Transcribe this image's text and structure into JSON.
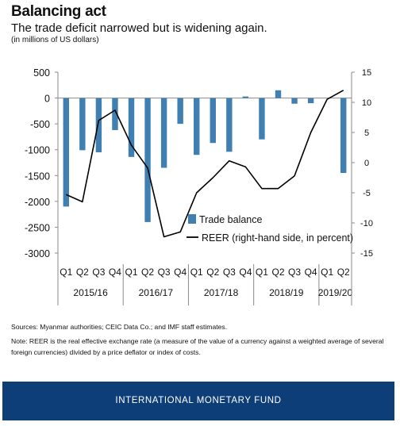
{
  "header": {
    "title": "Balancing act",
    "subtitle": "The trade deficit narrowed but is widening again.",
    "units": "(in millions of US dollars)"
  },
  "chart_data": {
    "type": "bar+line",
    "categories": [
      "Q1",
      "Q2",
      "Q3",
      "Q4",
      "Q1",
      "Q2",
      "Q3",
      "Q4",
      "Q1",
      "Q2",
      "Q3",
      "Q4",
      "Q1",
      "Q2",
      "Q3",
      "Q4",
      "Q1",
      "Q2"
    ],
    "year_groups": [
      {
        "label": "2015/16",
        "quarters": 4
      },
      {
        "label": "2016/17",
        "quarters": 4
      },
      {
        "label": "2017/18",
        "quarters": 4
      },
      {
        "label": "2018/19",
        "quarters": 4
      },
      {
        "label": "2019/20",
        "quarters": 2
      }
    ],
    "series": [
      {
        "name": "Trade balance",
        "type": "bar",
        "axis": "left",
        "color": "#3f7fb2",
        "values": [
          -2100,
          -1010,
          -1050,
          -620,
          -1140,
          -2400,
          -1350,
          -500,
          -1100,
          -870,
          -1040,
          30,
          -800,
          150,
          -110,
          -100,
          null,
          -1450
        ]
      },
      {
        "name": "REER (right-hand side, in percent)",
        "type": "line",
        "axis": "right",
        "color": "#000000",
        "values": [
          -5.3,
          -6.5,
          7,
          8.7,
          2.9,
          -0.9,
          -12.3,
          -11.5,
          -5,
          -2.5,
          0.3,
          -0.7,
          -4.3,
          -4.3,
          -2.2,
          5,
          10.5,
          12
        ]
      }
    ],
    "y_left": {
      "min": -3000,
      "max": 500,
      "ticks": [
        500,
        0,
        -500,
        -1000,
        -1500,
        -2000,
        -2500,
        -3000
      ],
      "tick_labels": [
        "500",
        "0",
        "-500",
        "-1000",
        "-1500",
        "-2000",
        "-2500",
        "-3000"
      ]
    },
    "y_right": {
      "min": -15,
      "max": 15,
      "ticks": [
        15,
        10,
        5,
        0,
        -5,
        -10,
        -15
      ],
      "tick_labels": [
        "15",
        "10",
        "5",
        "0",
        "-5",
        "-10",
        "-15"
      ]
    },
    "grid": false,
    "legend_position": "bottom-right"
  },
  "sources": "Sources: Myanmar authorities; CEIC Data Co.; and IMF staff estimates.",
  "note": "Note: REER is the real effective exchange rate (a measure of the value of a currency against a weighted average of several foreign currencies) divided by a price deflator or index of costs.",
  "footer": "INTERNATIONAL MONETARY FUND"
}
